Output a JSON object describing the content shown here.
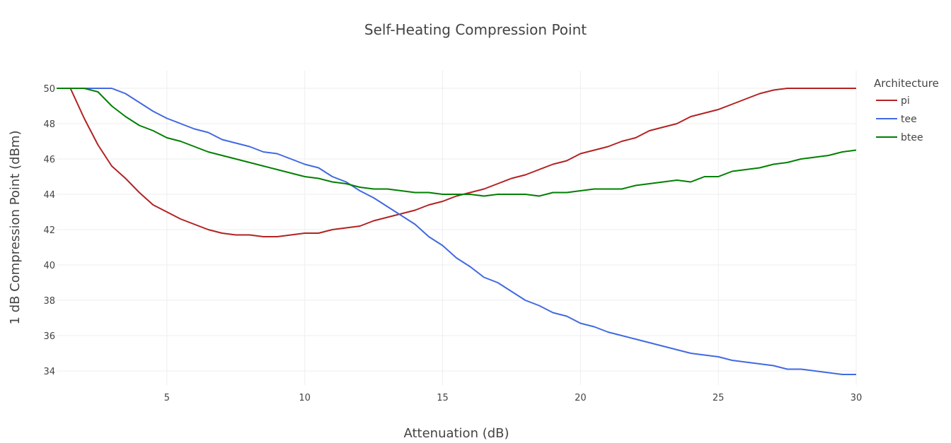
{
  "chart_data": {
    "type": "line",
    "title": "Self-Heating Compression Point",
    "xlabel": "Attenuation (dB)",
    "ylabel": "1 dB Compression Point (dBm)",
    "xlim": [
      1,
      30
    ],
    "ylim": [
      33.2,
      51
    ],
    "xticks": [
      5,
      10,
      15,
      20,
      25,
      30
    ],
    "yticks": [
      34,
      36,
      38,
      40,
      42,
      44,
      46,
      48,
      50
    ],
    "grid": true,
    "legend": {
      "title": "Architecture",
      "position": "top-right"
    },
    "x": [
      1,
      1.5,
      2,
      2.5,
      3,
      3.5,
      4,
      4.5,
      5,
      5.5,
      6,
      6.5,
      7,
      7.5,
      8,
      8.5,
      9,
      9.5,
      10,
      10.5,
      11,
      11.5,
      12,
      12.5,
      13,
      13.5,
      14,
      14.5,
      15,
      15.5,
      16,
      16.5,
      17,
      17.5,
      18,
      18.5,
      19,
      19.5,
      20,
      20.5,
      21,
      21.5,
      22,
      22.5,
      23,
      23.5,
      24,
      24.5,
      25,
      25.5,
      26,
      26.5,
      27,
      27.5,
      28,
      28.5,
      29,
      29.5,
      30
    ],
    "series": [
      {
        "name": "pi",
        "color": "#b22222",
        "values": [
          50,
          50,
          48.3,
          46.8,
          45.6,
          44.9,
          44.1,
          43.4,
          43.0,
          42.6,
          42.3,
          42.0,
          41.8,
          41.7,
          41.7,
          41.6,
          41.6,
          41.7,
          41.8,
          41.8,
          42.0,
          42.1,
          42.2,
          42.5,
          42.7,
          42.9,
          43.1,
          43.4,
          43.6,
          43.9,
          44.1,
          44.3,
          44.6,
          44.9,
          45.1,
          45.4,
          45.7,
          45.9,
          46.3,
          46.5,
          46.7,
          47.0,
          47.2,
          47.6,
          47.8,
          48.0,
          48.4,
          48.6,
          48.8,
          49.1,
          49.4,
          49.7,
          49.9,
          50.0,
          50.0,
          50.0,
          50.0,
          50.0,
          50.0
        ]
      },
      {
        "name": "tee",
        "color": "#4169e1",
        "values": [
          50,
          50,
          50,
          50,
          50,
          49.7,
          49.2,
          48.7,
          48.3,
          48.0,
          47.7,
          47.5,
          47.1,
          46.9,
          46.7,
          46.4,
          46.3,
          46.0,
          45.7,
          45.5,
          45.0,
          44.7,
          44.2,
          43.8,
          43.3,
          42.8,
          42.3,
          41.6,
          41.1,
          40.4,
          39.9,
          39.3,
          39.0,
          38.5,
          38.0,
          37.7,
          37.3,
          37.1,
          36.7,
          36.5,
          36.2,
          36.0,
          35.8,
          35.6,
          35.4,
          35.2,
          35.0,
          34.9,
          34.8,
          34.6,
          34.5,
          34.4,
          34.3,
          34.1,
          34.1,
          34.0,
          33.9,
          33.8,
          33.8
        ]
      },
      {
        "name": "btee",
        "color": "#008000",
        "values": [
          50,
          50,
          50,
          49.8,
          49.0,
          48.4,
          47.9,
          47.6,
          47.2,
          47.0,
          46.7,
          46.4,
          46.2,
          46.0,
          45.8,
          45.6,
          45.4,
          45.2,
          45.0,
          44.9,
          44.7,
          44.6,
          44.4,
          44.3,
          44.3,
          44.2,
          44.1,
          44.1,
          44.0,
          44.0,
          44.0,
          43.9,
          44.0,
          44.0,
          44.0,
          43.9,
          44.1,
          44.1,
          44.2,
          44.3,
          44.3,
          44.3,
          44.5,
          44.6,
          44.7,
          44.8,
          44.7,
          45.0,
          45.0,
          45.3,
          45.4,
          45.5,
          45.7,
          45.8,
          46.0,
          46.1,
          46.2,
          46.4,
          46.5
        ]
      }
    ]
  }
}
